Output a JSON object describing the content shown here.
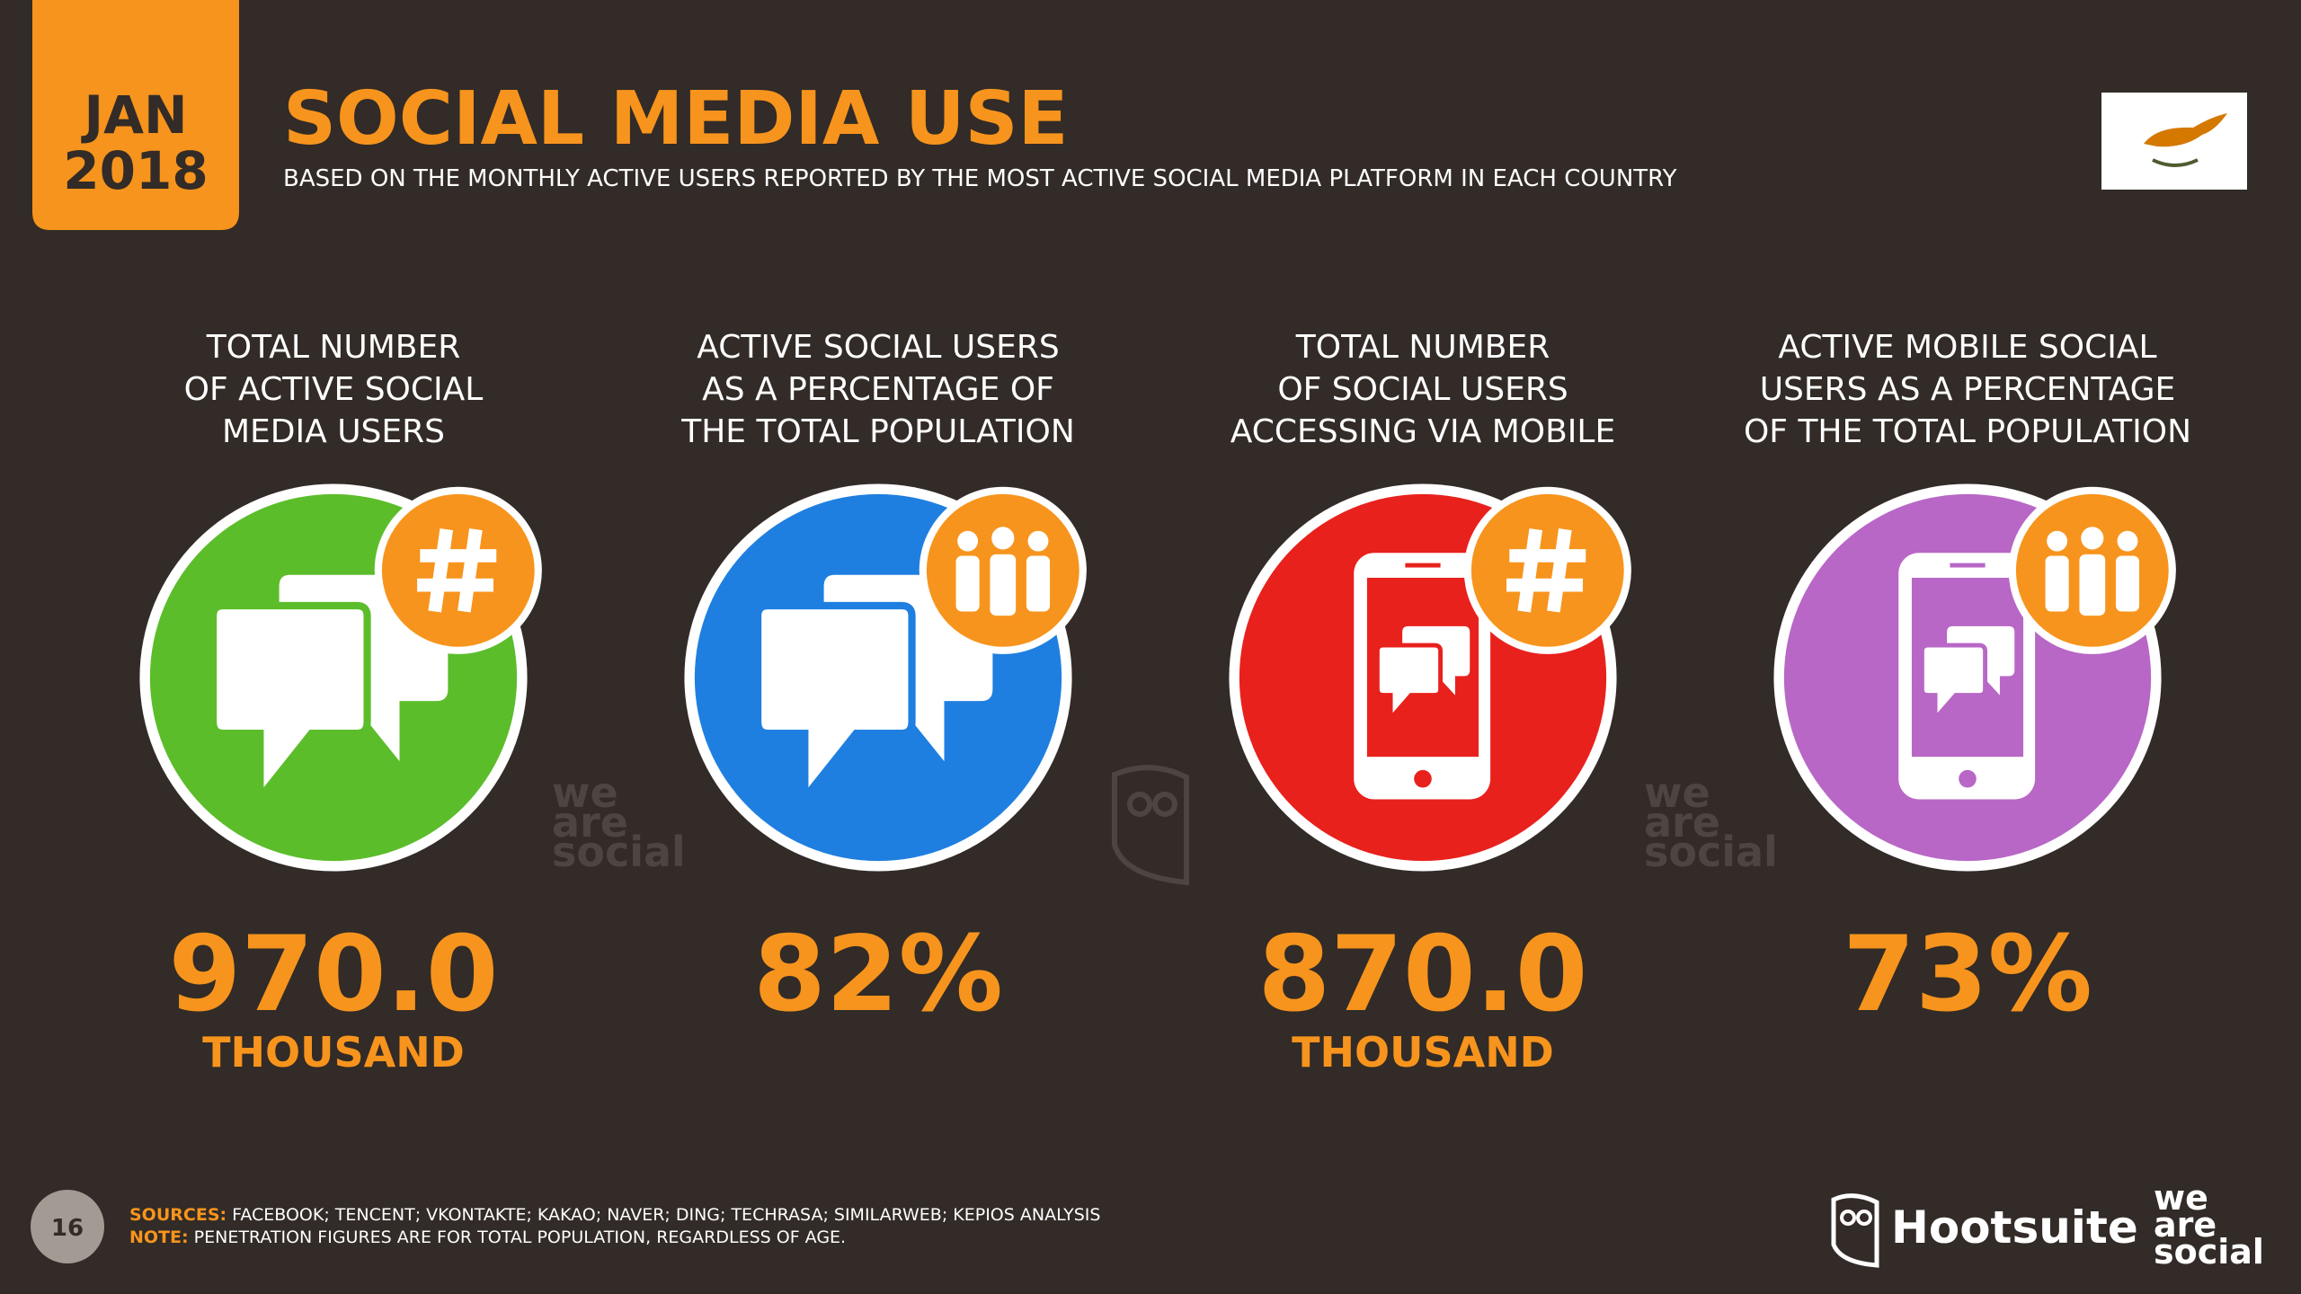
{
  "header": {
    "month": "JAN",
    "year": "2018",
    "title": "SOCIAL MEDIA USE",
    "subtitle": "BASED ON THE MONTHLY ACTIVE USERS REPORTED BY THE MOST ACTIVE SOCIAL MEDIA PLATFORM IN EACH COUNTRY"
  },
  "stats": [
    {
      "label": [
        "TOTAL NUMBER",
        "OF ACTIVE SOCIAL",
        "MEDIA USERS"
      ],
      "value": "970.0",
      "unit": "THOUSAND"
    },
    {
      "label": [
        "ACTIVE SOCIAL USERS",
        "AS A PERCENTAGE OF",
        "THE TOTAL POPULATION"
      ],
      "value": "82%"
    },
    {
      "label": [
        "TOTAL NUMBER",
        "OF SOCIAL USERS",
        "ACCESSING VIA MOBILE"
      ],
      "value": "870.0",
      "unit": "THOUSAND"
    },
    {
      "label": [
        "ACTIVE MOBILE SOCIAL",
        "USERS AS A PERCENTAGE",
        "OF THE TOTAL POPULATION"
      ],
      "value": "73%"
    }
  ],
  "footer": {
    "page": "16",
    "sources_label": "SOURCES:",
    "sources": "FACEBOOK; TENCENT; VKONTAKTE; KAKAO; NAVER; DING; TECHRASA; SIMILARWEB; KEPIOS ANALYSIS",
    "note_label": "NOTE:",
    "note": "PENETRATION FIGURES ARE FOR TOTAL POPULATION, REGARDLESS OF AGE.",
    "hootsuite": "Hootsuite",
    "wearesocial": [
      "we",
      "are",
      "social"
    ]
  }
}
